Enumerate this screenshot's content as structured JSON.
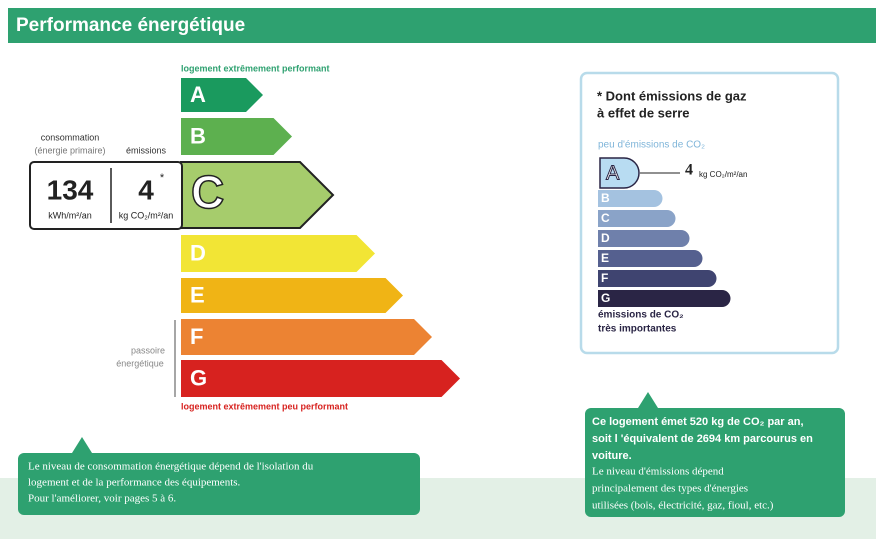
{
  "header": {
    "title": "Performance énergétique"
  },
  "energy_label": {
    "top_note": "logement extrêmement performant",
    "bottom_note": "logement extrêmement peu performant",
    "ratings": [
      "A",
      "B",
      "C",
      "D",
      "E",
      "F",
      "G"
    ],
    "selected": "C",
    "consumption": {
      "caption": [
        "consommation",
        "(énergie primaire)"
      ],
      "value": "134",
      "unit": "kWh/m²/an"
    },
    "emissions": {
      "caption": "émissions",
      "value": "4",
      "marker": "*",
      "unit": "kg CO₂/m²/an"
    },
    "passoire": [
      "passoire",
      "énergétique"
    ]
  },
  "ges_label": {
    "title": [
      "* Dont émissions de gaz",
      "à effet de serre"
    ],
    "top_note": "peu d'émissions de CO₂",
    "ratings": [
      "A",
      "B",
      "C",
      "D",
      "E",
      "F",
      "G"
    ],
    "selected": "A",
    "value": "4",
    "unit": "kg CO₂/m²/an",
    "bottom_note": [
      "émissions de CO₂",
      "très importantes"
    ]
  },
  "callouts": [
    {
      "lines": [
        "Le niveau de consommation énergétique dépend de l'isolation du",
        "logement et de la performance des équipements.",
        "Pour l'améliorer, voir pages 5 à 6."
      ]
    },
    {
      "bold_lines": [
        "Ce logement émet  520 kg de CO₂ par an,",
        "soit l 'équivalent de  2694 km parcourus en",
        "voiture."
      ],
      "lines": [
        "Le niveau d'émissions dépend",
        "principalement des types d'énergies",
        "utilisées (bois, électricité, gaz, fioul, etc.)"
      ]
    }
  ]
}
